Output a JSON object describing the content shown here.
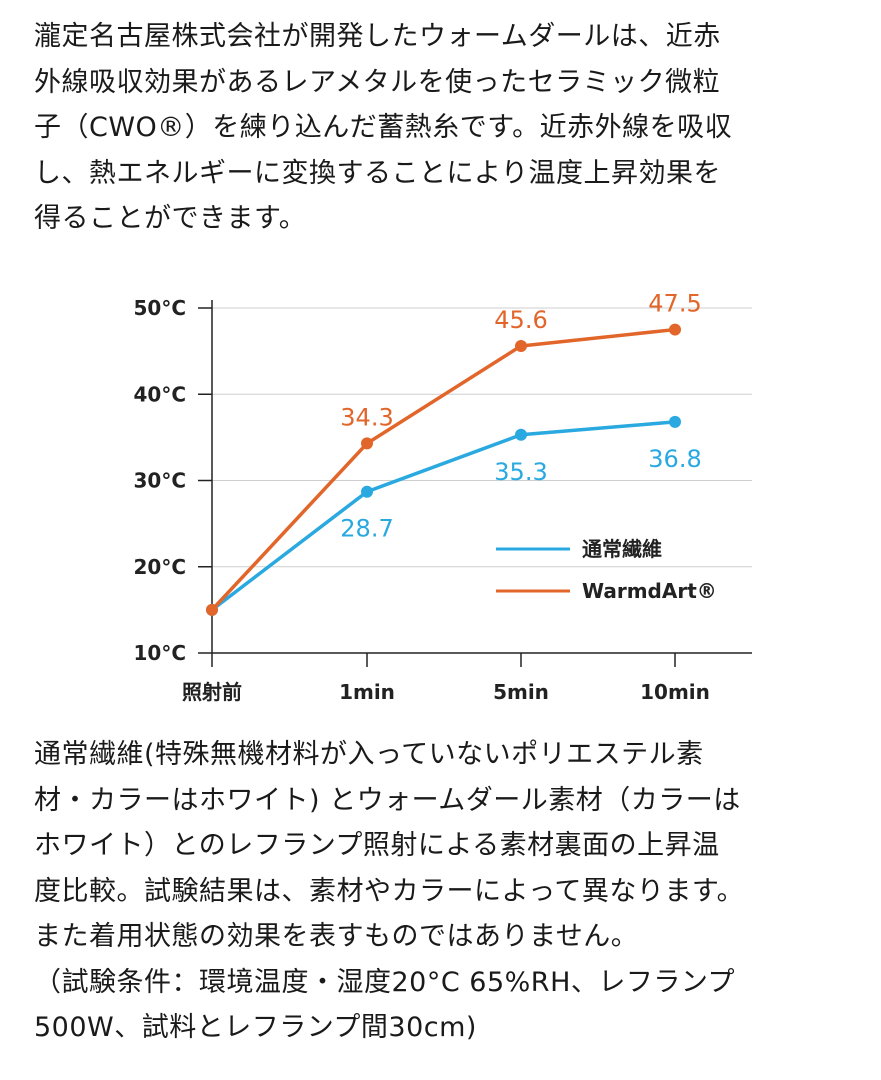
{
  "intro_lines": [
    "瀧定名古屋株式会社が開発したウォームダールは、近赤",
    "外線吸収効果があるレアメタルを使ったセラミック微粒",
    "子（CWO®）を練り込んだ蓄熱糸です。近赤外線を吸収",
    "し、熱エネルギーに変換することにより温度上昇効果を",
    "得ることができます。"
  ],
  "caption_lines": [
    "通常繊維(特殊無機材料が入っていないポリエステル素",
    "材・カラーはホワイト) とウォームダール素材（カラーは",
    "ホワイト）とのレフランプ照射による素材裏面の上昇温",
    "度比較。試験結果は、素材やカラーによって異なります。",
    "また着用状態の効果を表すものではありません。",
    "（試験条件：環境温度・湿度20°C 65%RH、レフランプ",
    "500W、試料とレフランプ間30cm)"
  ],
  "chart_data": {
    "type": "line",
    "categories": [
      "照射前",
      "1min",
      "5min",
      "10min"
    ],
    "y_ticks": [
      "10°C",
      "20°C",
      "30°C",
      "40°C",
      "50°C"
    ],
    "y_tick_values": [
      10,
      20,
      30,
      40,
      50
    ],
    "ylim": [
      10,
      50
    ],
    "grid": "horizontal",
    "legend_placement": "right",
    "series": [
      {
        "name": "通常繊維",
        "color": "#29a9e0",
        "values": [
          15,
          28.7,
          35.3,
          36.8
        ],
        "labels": [
          "",
          "28.7",
          "35.3",
          "36.8"
        ],
        "label_position": "below"
      },
      {
        "name": "WarmdArt®",
        "color": "#e2652a",
        "values": [
          15,
          34.3,
          45.6,
          47.5
        ],
        "labels": [
          "",
          "34.3",
          "45.6",
          "47.5"
        ],
        "label_position": "above"
      }
    ]
  }
}
